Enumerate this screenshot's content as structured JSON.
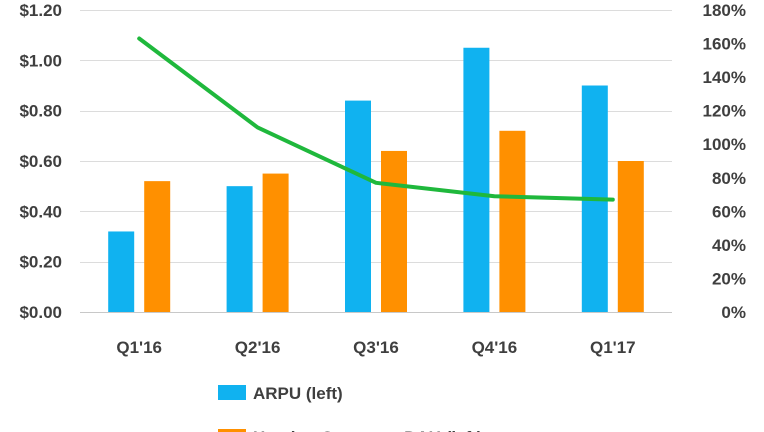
{
  "chart_data": {
    "type": "bar",
    "categories": [
      "Q1'16",
      "Q2'16",
      "Q3'16",
      "Q4'16",
      "Q1'17"
    ],
    "series": [
      {
        "name": "ARPU (left)",
        "type": "bar",
        "axis": "left",
        "color": "#10b2f0",
        "values": [
          0.32,
          0.5,
          0.84,
          1.05,
          0.9
        ]
      },
      {
        "name": "Hosting Costs per DAU (left)",
        "type": "bar",
        "axis": "left",
        "color": "#ff9000",
        "values": [
          0.52,
          0.55,
          0.64,
          0.72,
          0.6
        ]
      },
      {
        "name": "",
        "type": "line",
        "axis": "right",
        "color": "#1fb83c",
        "values": [
          163,
          110,
          77,
          69,
          67
        ]
      }
    ],
    "y_left": {
      "ylim": [
        0,
        1.2
      ],
      "ticks": [
        0,
        0.2,
        0.4,
        0.6,
        0.8,
        1.0,
        1.2
      ],
      "tick_labels": [
        "$0.00",
        "$0.20",
        "$0.40",
        "$0.60",
        "$0.80",
        "$1.00",
        "$1.20"
      ]
    },
    "y_right": {
      "ylim": [
        0,
        180
      ],
      "ticks": [
        0,
        20,
        40,
        60,
        80,
        100,
        120,
        140,
        160,
        180
      ],
      "tick_labels": [
        "0%",
        "20%",
        "40%",
        "60%",
        "80%",
        "100%",
        "120%",
        "140%",
        "160%",
        "180%"
      ]
    },
    "title": "",
    "xlabel": "",
    "ylabel": "",
    "grid": true,
    "legend_placement": "bottom-left"
  }
}
